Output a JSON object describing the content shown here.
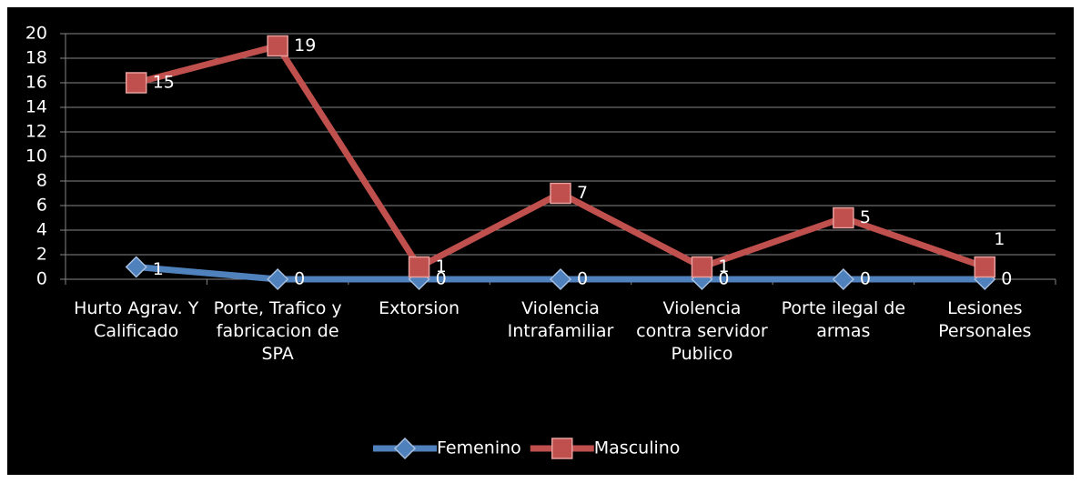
{
  "chart_data": {
    "type": "line",
    "stacked": true,
    "categories": [
      "Hurto Agrav. Y Calificado",
      "Porte, Trafico y fabricacion de SPA",
      "Extorsion",
      "Violencia Intrafamiliar",
      "Violencia contra servidor Publico",
      "Porte ilegal de armas",
      "Lesiones Personales"
    ],
    "series": [
      {
        "name": "Femenino",
        "color": "#4f81bd",
        "marker": "diamond",
        "values": [
          1,
          0,
          0,
          0,
          0,
          0,
          0
        ]
      },
      {
        "name": "Masculino",
        "color": "#c0504d",
        "marker": "square",
        "values": [
          15,
          19,
          1,
          7,
          1,
          5,
          1
        ]
      }
    ],
    "ylim": [
      0,
      20
    ],
    "yticks": [
      0,
      2,
      4,
      6,
      8,
      10,
      12,
      14,
      16,
      18,
      20
    ],
    "grid": true,
    "legend": "bottom"
  }
}
